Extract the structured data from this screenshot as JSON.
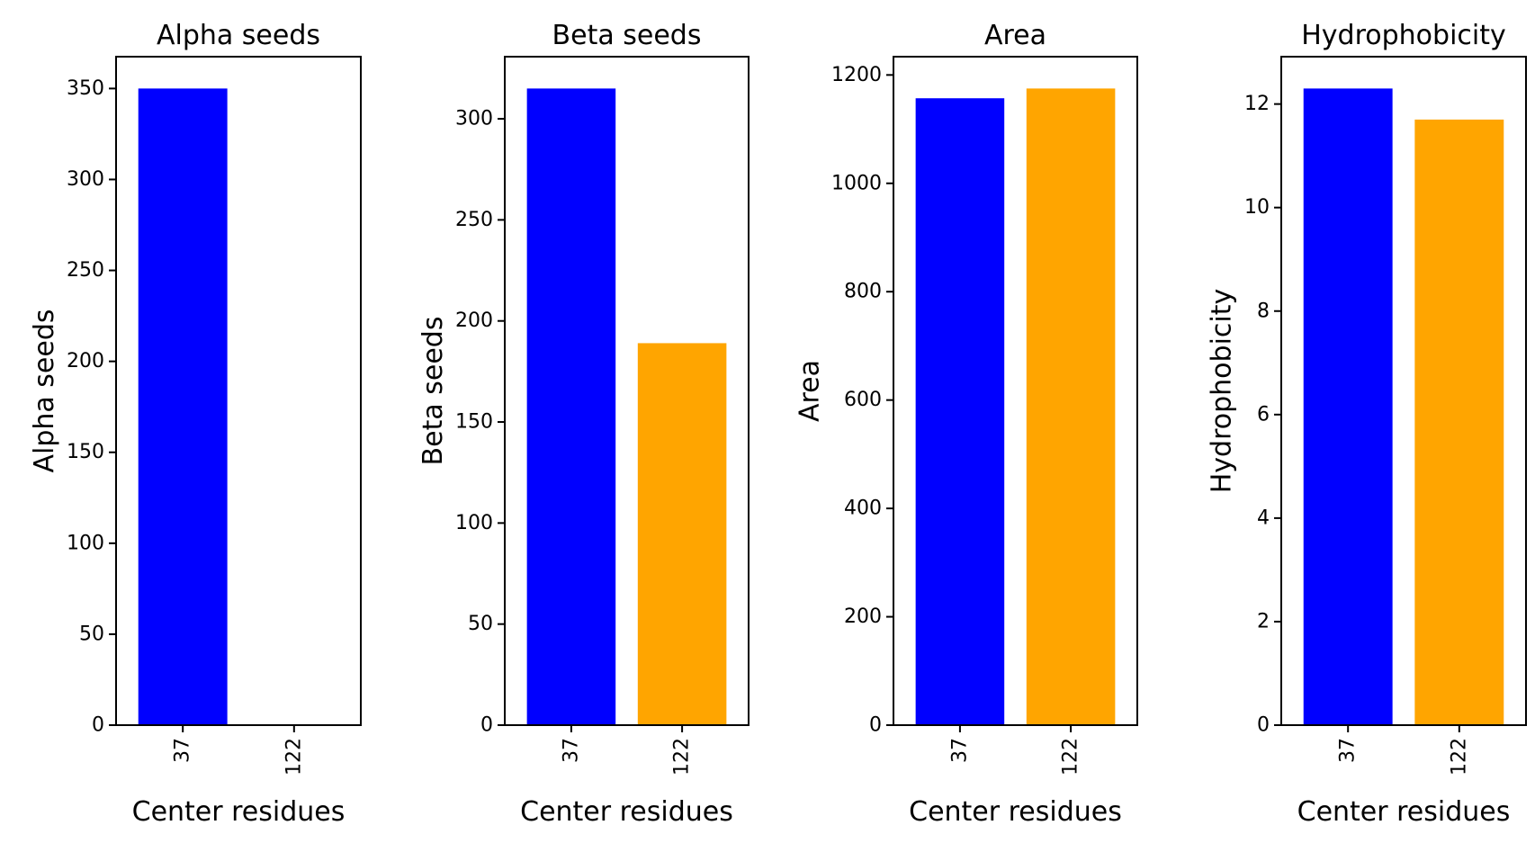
{
  "chart_data": [
    {
      "type": "bar",
      "title": "Alpha seeds",
      "xlabel": "Center residues",
      "ylabel": "Alpha seeds",
      "categories": [
        "37",
        "122"
      ],
      "values": [
        350,
        0
      ],
      "bar_colors": [
        "#0000ff",
        "#ffa500"
      ],
      "ylim": [
        0,
        367.5
      ],
      "yticks": [
        0,
        50,
        100,
        150,
        200,
        250,
        300,
        350
      ],
      "grid": false
    },
    {
      "type": "bar",
      "title": "Beta seeds",
      "xlabel": "Center residues",
      "ylabel": "Beta seeds",
      "categories": [
        "37",
        "122"
      ],
      "values": [
        315,
        189
      ],
      "bar_colors": [
        "#0000ff",
        "#ffa500"
      ],
      "ylim": [
        0,
        330.75
      ],
      "yticks": [
        0,
        50,
        100,
        150,
        200,
        250,
        300
      ],
      "grid": false
    },
    {
      "type": "bar",
      "title": "Area",
      "xlabel": "Center residues",
      "ylabel": "Area",
      "categories": [
        "37",
        "122"
      ],
      "values": [
        1157,
        1175
      ],
      "bar_colors": [
        "#0000ff",
        "#ffa500"
      ],
      "ylim": [
        0,
        1233.75
      ],
      "yticks": [
        0,
        200,
        400,
        600,
        800,
        1000,
        1200
      ],
      "grid": false
    },
    {
      "type": "bar",
      "title": "Hydrophobicity",
      "xlabel": "Center residues",
      "ylabel": "Hydrophobicity",
      "categories": [
        "37",
        "122"
      ],
      "values": [
        12.3,
        11.7
      ],
      "bar_colors": [
        "#0000ff",
        "#ffa500"
      ],
      "ylim": [
        0,
        12.915
      ],
      "yticks": [
        0,
        2,
        4,
        6,
        8,
        10,
        12
      ],
      "grid": false
    }
  ]
}
